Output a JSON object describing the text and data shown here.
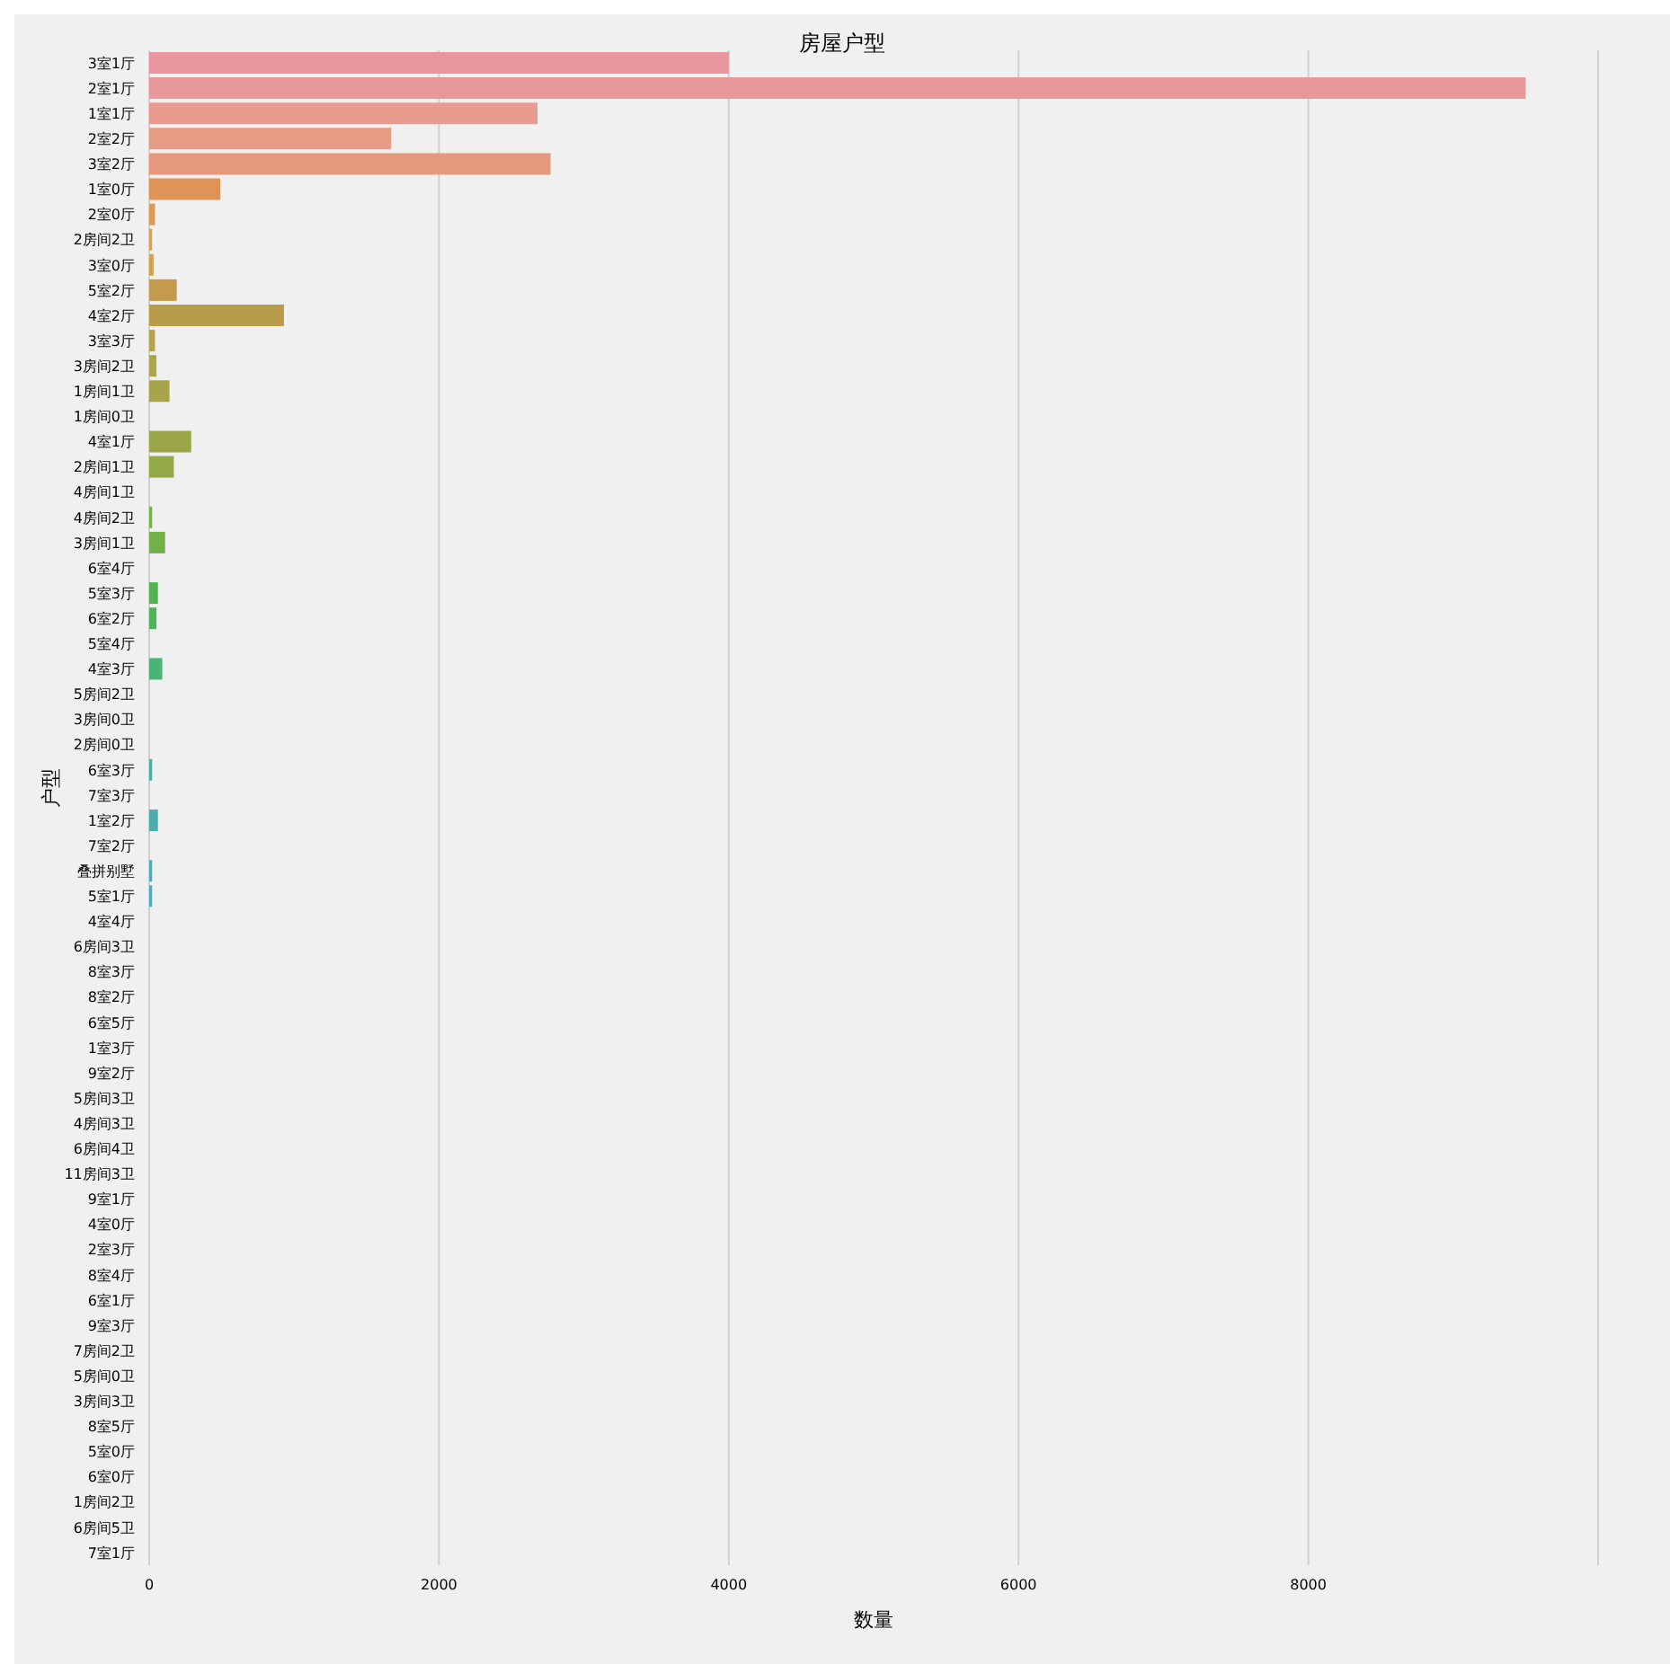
{
  "chart_data": {
    "type": "bar",
    "orientation": "horizontal",
    "title": "房屋户型",
    "xlabel": "数量",
    "ylabel": "户型",
    "categories": [
      "3室1厅",
      "2室1厅",
      "1室1厅",
      "2室2厅",
      "3室2厅",
      "1室0厅",
      "2室0厅",
      "2房间2卫",
      "3室0厅",
      "5室2厅",
      "4室2厅",
      "3室3厅",
      "3房间2卫",
      "1房间1卫",
      "1房间0卫",
      "4室1厅",
      "2房间1卫",
      "4房间1卫",
      "4房间2卫",
      "3房间1卫",
      "6室4厅",
      "5室3厅",
      "6室2厅",
      "5室4厅",
      "4室3厅",
      "5房间2卫",
      "3房间0卫",
      "2房间0卫",
      "6室3厅",
      "7室3厅",
      "1室2厅",
      "7室2厅",
      "叠拼别墅",
      "5室1厅",
      "4室4厅",
      "6房间3卫",
      "8室3厅",
      "8室2厅",
      "6室5厅",
      "1室3厅",
      "9室2厅",
      "5房间3卫",
      "4房间3卫",
      "6房间4卫",
      "11房间3卫",
      "9室1厅",
      "4室0厅",
      "2室3厅",
      "8室4厅",
      "6室1厅",
      "9室3厅",
      "7房间2卫",
      "5房间0卫",
      "3房间3卫",
      "8室5厅",
      "5室0厅",
      "6室0厅",
      "1房间2卫",
      "6房间5卫",
      "7室1厅"
    ],
    "values": [
      4000,
      9500,
      2680,
      1670,
      2770,
      490,
      40,
      20,
      30,
      190,
      930,
      40,
      50,
      140,
      0,
      290,
      170,
      0,
      20,
      110,
      0,
      60,
      50,
      0,
      90,
      0,
      0,
      0,
      20,
      0,
      60,
      0,
      20,
      20,
      0,
      0,
      0,
      0,
      0,
      0,
      0,
      0,
      0,
      0,
      0,
      0,
      0,
      0,
      0,
      0,
      0,
      0,
      0,
      0,
      0,
      0,
      0,
      0,
      0,
      0
    ],
    "colors": [
      "#e8959f",
      "#e8979a",
      "#e89a8f",
      "#e69b85",
      "#e5987b",
      "#df9356",
      "#dc9a55",
      "#d6a056",
      "#cfa24f",
      "#c49a4e",
      "#b89c4a",
      "#b7a24e",
      "#ada54c",
      "#a8a44b",
      "#a2a44a",
      "#9aa648",
      "#93a948",
      "#8aab48",
      "#7fae47",
      "#72b049",
      "#62b24c",
      "#52b451",
      "#4cb45c",
      "#4bb46a",
      "#4ab377",
      "#4ab382",
      "#49b28c",
      "#49b195",
      "#4ab09d",
      "#4bafa5",
      "#4caeac",
      "#4dadb3",
      "#4eacba",
      "#50abc1",
      "#52a9c8",
      "#55a8cf",
      "#59a5d6",
      "#5ea2dd",
      "#659fe3",
      "#6e9be8",
      "#7997ea",
      "#8493eb",
      "#8f8eeb",
      "#9a8aea",
      "#a586e8",
      "#ae83e5",
      "#b781e1",
      "#c07fdc",
      "#c87ed6",
      "#cf7ecf",
      "#d67fc7",
      "#dc80bf",
      "#e082b7",
      "#e384af",
      "#e687a8",
      "#e889a2",
      "#e88c9f",
      "#e98f9d",
      "#e9929c",
      "#e8949e"
    ],
    "xlim": [
      0,
      10000
    ],
    "xticks": [
      0,
      2000,
      4000,
      6000,
      8000
    ],
    "grid": "x",
    "legend": false
  }
}
